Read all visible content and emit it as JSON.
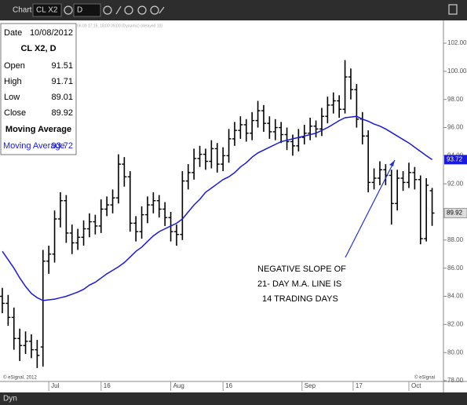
{
  "toolbar": {
    "title": "Chart",
    "symbol": "CL X2",
    "interval": "D",
    "mode": "Dyn"
  },
  "chart_data": {
    "type": "ohlc",
    "title": "CL X2, D",
    "status": "06:00 17:15, 18:00 09:00 (Dynamic) (delayed 10)",
    "date_label": "Date",
    "date": "10/08/2012",
    "ohlc_labels": [
      "Open",
      "High",
      "Low",
      "Close"
    ],
    "color": "#000000",
    "open": [
      84.0,
      83.5,
      82.5,
      81.0,
      80.5,
      80.8,
      80.2,
      80.4,
      86.5,
      87.0,
      89.5,
      90.8,
      88.5,
      87.8,
      88.2,
      88.8,
      89.3,
      89.0,
      90.2,
      90.5,
      91.0,
      93.4,
      92.5,
      89.2,
      88.6,
      89.8,
      90.5,
      90.8,
      90.2,
      89.6,
      88.6,
      88.4,
      92.2,
      92.8,
      93.8,
      94.1,
      93.6,
      94.5,
      93.4,
      94.0,
      95.2,
      95.8,
      96.2,
      95.6,
      96.5,
      97.2,
      96.3,
      95.7,
      96.0,
      95.5,
      95.0,
      94.7,
      95.3,
      95.6,
      96.1,
      95.9,
      96.8,
      97.6,
      97.9,
      97.3,
      99.6,
      98.7,
      96.6,
      95.4,
      92.1,
      92.4,
      93.0,
      92.6,
      90.6,
      92.4,
      92.1,
      92.8,
      92.3,
      88.1,
      91.51
    ],
    "high": [
      84.6,
      84.1,
      83.2,
      81.7,
      81.5,
      81.3,
      80.9,
      87.3,
      87.6,
      90.1,
      91.4,
      91.2,
      89.1,
      88.8,
      89.4,
      89.9,
      89.8,
      90.9,
      91.1,
      91.6,
      94.1,
      93.9,
      92.9,
      89.7,
      90.4,
      91.1,
      91.4,
      91.2,
      90.7,
      90.0,
      89.1,
      92.9,
      93.4,
      94.5,
      94.7,
      94.5,
      95.1,
      94.9,
      94.6,
      95.9,
      96.4,
      96.8,
      96.6,
      97.1,
      97.9,
      97.6,
      96.8,
      96.6,
      96.4,
      96.0,
      95.5,
      95.9,
      96.2,
      96.7,
      96.5,
      97.4,
      98.2,
      98.5,
      98.3,
      100.8,
      100.2,
      99.1,
      97.1,
      95.8,
      93.1,
      93.6,
      93.4,
      93.0,
      93.0,
      92.9,
      93.5,
      93.2,
      92.6,
      92.4,
      91.71
    ],
    "low": [
      82.8,
      81.9,
      80.2,
      79.4,
      79.9,
      79.6,
      78.9,
      79.0,
      85.6,
      86.4,
      88.9,
      87.8,
      87.0,
      87.3,
      87.6,
      88.2,
      88.4,
      88.5,
      89.7,
      89.9,
      90.6,
      91.8,
      88.6,
      87.9,
      88.1,
      89.2,
      89.9,
      89.6,
      89.0,
      87.9,
      87.6,
      88.0,
      91.6,
      92.3,
      93.2,
      93.0,
      93.1,
      92.8,
      92.9,
      93.5,
      94.7,
      95.2,
      95.0,
      95.1,
      96.0,
      95.7,
      95.2,
      95.1,
      94.9,
      94.4,
      94.0,
      94.3,
      94.8,
      95.1,
      95.3,
      95.4,
      96.3,
      97.0,
      96.7,
      97.0,
      98.0,
      96.0,
      94.8,
      91.4,
      91.6,
      91.9,
      91.9,
      89.1,
      90.1,
      91.5,
      91.7,
      91.6,
      87.7,
      87.9,
      89.01
    ],
    "close": [
      83.5,
      82.5,
      81.0,
      80.5,
      80.8,
      80.2,
      79.8,
      86.5,
      87.0,
      89.5,
      90.8,
      88.5,
      87.8,
      88.2,
      88.8,
      89.3,
      89.0,
      90.2,
      90.5,
      91.0,
      93.4,
      92.5,
      89.2,
      88.6,
      89.8,
      90.5,
      90.8,
      90.2,
      89.6,
      88.6,
      88.4,
      92.2,
      92.8,
      93.8,
      94.1,
      93.6,
      94.5,
      93.4,
      94.0,
      95.2,
      95.8,
      96.2,
      95.6,
      96.5,
      97.2,
      96.3,
      95.7,
      96.0,
      95.5,
      95.0,
      94.7,
      95.3,
      95.6,
      96.1,
      95.9,
      96.8,
      97.6,
      97.9,
      97.3,
      99.6,
      98.7,
      96.6,
      95.4,
      92.1,
      92.4,
      93.0,
      92.6,
      90.6,
      92.4,
      92.1,
      92.8,
      92.3,
      88.1,
      91.9,
      89.92
    ],
    "series": [
      {
        "name": "Moving Average",
        "color": "#1a1adc",
        "values": [
          87.2,
          86.6,
          86.0,
          85.3,
          84.7,
          84.2,
          83.9,
          83.7,
          83.75,
          83.8,
          83.9,
          84.0,
          84.15,
          84.3,
          84.5,
          84.8,
          85.0,
          85.3,
          85.6,
          85.85,
          86.1,
          86.4,
          86.8,
          87.2,
          87.5,
          87.9,
          88.3,
          88.6,
          88.8,
          89.0,
          89.2,
          89.5,
          90.0,
          90.5,
          90.9,
          91.4,
          91.7,
          92.0,
          92.3,
          92.5,
          92.8,
          93.2,
          93.5,
          93.9,
          94.2,
          94.4,
          94.6,
          94.8,
          95.0,
          95.1,
          95.2,
          95.3,
          95.4,
          95.5,
          95.6,
          95.8,
          96.0,
          96.25,
          96.5,
          96.7,
          96.75,
          96.8,
          96.6,
          96.45,
          96.25,
          96.1,
          95.9,
          95.65,
          95.4,
          95.15,
          94.9,
          94.6,
          94.3,
          94.0,
          93.72
        ]
      }
    ],
    "ylim": [
      78,
      103.51
    ],
    "yticks": [
      {
        "value": 78,
        "label": "78.00"
      },
      {
        "value": 80,
        "label": "80.00"
      },
      {
        "value": 82,
        "label": "82.00"
      },
      {
        "value": 84,
        "label": "84.00"
      },
      {
        "value": 86,
        "label": "86.00"
      },
      {
        "value": 88,
        "label": "88.00"
      },
      {
        "value": 90,
        "label": "90.00"
      },
      {
        "value": 92,
        "label": "92.00"
      },
      {
        "value": 94,
        "label": "94.00"
      },
      {
        "value": 96,
        "label": "96.00"
      },
      {
        "value": 98,
        "label": "98.00"
      },
      {
        "value": 100,
        "label": "100.00"
      },
      {
        "value": 102,
        "label": "102.00"
      }
    ],
    "xlim": [
      -0.4,
      75.95
    ],
    "xticks": [
      {
        "value": 8,
        "label": "Jul"
      },
      {
        "value": 17,
        "label": "16"
      },
      {
        "value": 29,
        "label": "Aug"
      },
      {
        "value": 38,
        "label": "16"
      },
      {
        "value": 51.6,
        "label": "Sep"
      },
      {
        "value": 60.4,
        "label": "17"
      },
      {
        "value": 70,
        "label": "Oct"
      }
    ],
    "annotation": [
      "NEGATIVE SLOPE OF",
      "21- DAY M.A. LINE IS",
      "14 TRADING DAYS"
    ],
    "copyright": "© eSignal, 2012",
    "watermark": "© eSignal"
  }
}
